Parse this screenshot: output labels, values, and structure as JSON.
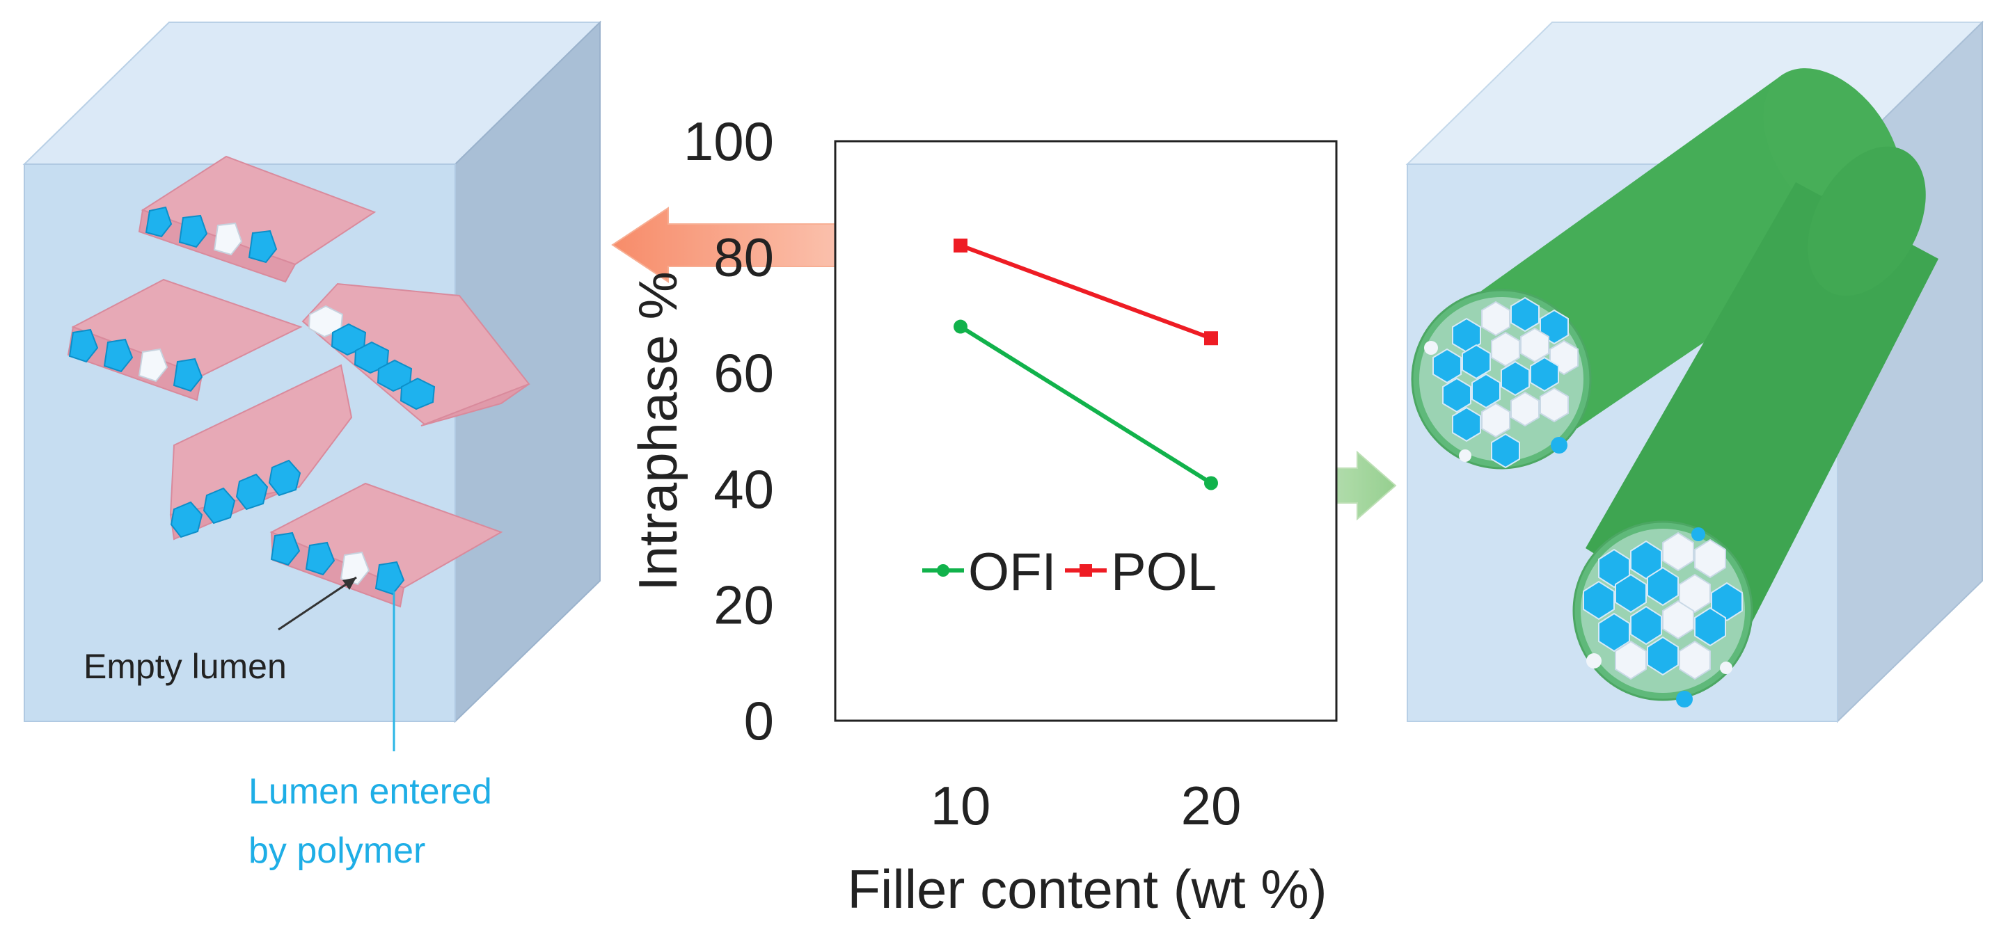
{
  "chart_data": {
    "type": "line",
    "x": [
      10,
      20
    ],
    "xlabel": "Filler content (wt %)",
    "ylabel": "Intraphase %",
    "ylim": [
      0,
      100
    ],
    "yticks": [
      0,
      20,
      40,
      60,
      80,
      100
    ],
    "xticks": [
      10,
      20
    ],
    "grid": false,
    "legend_position": "inside-lower-center",
    "series": [
      {
        "name": "OFI",
        "values": [
          68,
          41
        ],
        "color": "#11b24b",
        "marker": "circle"
      },
      {
        "name": "POL",
        "values": [
          82,
          66
        ],
        "color": "#ee1c24",
        "marker": "square"
      }
    ]
  },
  "annotations": {
    "empty_lumen": "Empty lumen",
    "lumen_entered_line1": "Lumen entered",
    "lumen_entered_line2": "by polymer"
  },
  "colors": {
    "matrix_block": "#c9dff1",
    "filler_plate": "#e8a6b2",
    "lumen_filled": "#1eb2ee",
    "fiber": "#3daa50",
    "arrow_left": "#f99b7d",
    "arrow_right": "#a9d8a2"
  }
}
